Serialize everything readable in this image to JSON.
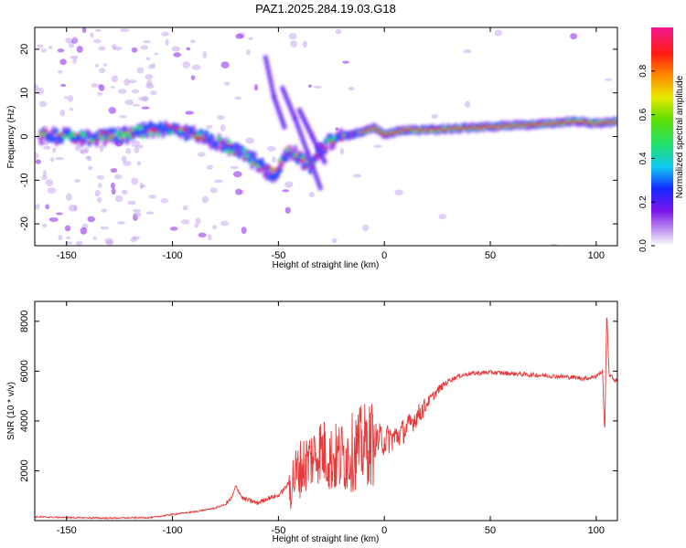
{
  "title": "PAZ1.2025.284.19.03.G18",
  "colors": {
    "snr_line": "#e83a3a",
    "ridge_core": "#e01818",
    "ridge_mid": "#30e060",
    "ridge_outer": "#2050ff",
    "ridge_edge": "#8a20f0",
    "noise": "#c8a8f0"
  },
  "chart_data": [
    {
      "type": "heatmap",
      "title": "PAZ1.2025.284.19.03.G18",
      "xlabel": "Height of straight line (km)",
      "ylabel": "Frequency (Hz)",
      "xlim": [
        -165,
        110
      ],
      "ylim": [
        -25,
        25
      ],
      "xticks": [
        -150,
        -100,
        -50,
        0,
        50,
        100
      ],
      "yticks": [
        -20,
        -10,
        0,
        10,
        20
      ],
      "colorbar": {
        "label": "Normalized spectral amplitude",
        "range": [
          0,
          1
        ],
        "ticks": [
          "0.0",
          "0.2",
          "0.4",
          "0.6",
          "0.8"
        ]
      },
      "ridge": {
        "x": [
          -160,
          -150,
          -140,
          -120,
          -110,
          -100,
          -90,
          -80,
          -70,
          -60,
          -52,
          -45,
          -40,
          -35,
          -30,
          -25,
          -20,
          -10,
          -5,
          0,
          10,
          20,
          40,
          60,
          80,
          90,
          100,
          105,
          110
        ],
        "freq": [
          0,
          0,
          -0.5,
          0.5,
          1.5,
          1.5,
          0.5,
          -1,
          -3,
          -6,
          -9,
          -3,
          -5,
          -7,
          -3,
          -1,
          0,
          1,
          2,
          0.5,
          1.5,
          1.5,
          2,
          2.5,
          3,
          3.5,
          3,
          3.2,
          3.5
        ]
      }
    },
    {
      "type": "line",
      "xlabel": "Height of straight line (km)",
      "ylabel": "SNR (10 * v/v)",
      "xlim": [
        -165,
        110
      ],
      "ylim": [
        0,
        8800
      ],
      "xticks": [
        -150,
        -100,
        -50,
        0,
        50,
        100
      ],
      "yticks": [
        2000,
        4000,
        6000,
        8000
      ],
      "series": [
        {
          "name": "SNR",
          "x": [
            -165,
            -150,
            -130,
            -110,
            -100,
            -90,
            -80,
            -75,
            -72,
            -70,
            -67,
            -60,
            -55,
            -50,
            -45,
            -40,
            -35,
            -30,
            -25,
            -20,
            -15,
            -10,
            -5,
            0,
            5,
            10,
            15,
            20,
            25,
            30,
            35,
            40,
            50,
            60,
            70,
            80,
            90,
            95,
            100,
            103,
            104,
            105,
            106,
            108,
            110
          ],
          "y": [
            150,
            120,
            100,
            120,
            250,
            350,
            500,
            650,
            900,
            1400,
            900,
            700,
            900,
            1000,
            1500,
            2200,
            2600,
            3000,
            2600,
            2700,
            2900,
            3200,
            3300,
            3300,
            3400,
            3700,
            4200,
            4700,
            5200,
            5600,
            5800,
            5900,
            5950,
            5900,
            5850,
            5800,
            5750,
            5700,
            5800,
            6000,
            3400,
            8500,
            5900,
            5700,
            5600
          ]
        }
      ]
    }
  ]
}
